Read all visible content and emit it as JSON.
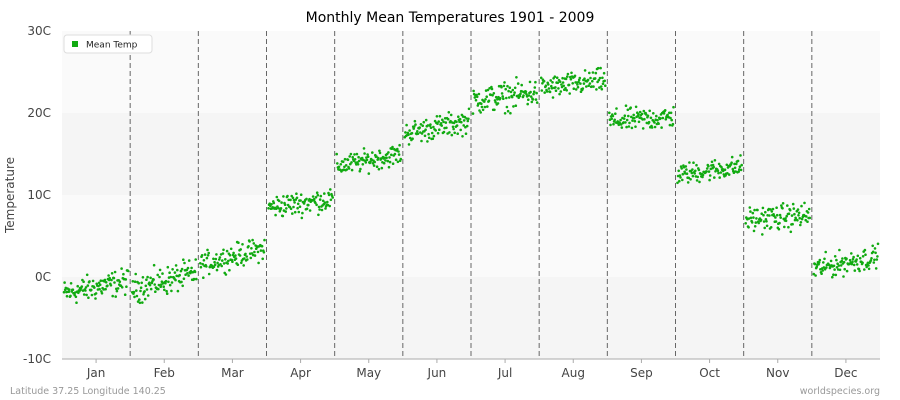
{
  "chart_data": {
    "type": "scatter",
    "title": "Monthly Mean Temperatures 1901 - 2009",
    "ylabel": "Temperature",
    "xlabel": "",
    "ylim": [
      -10,
      30
    ],
    "yticks": [
      {
        "value": 30,
        "label": "30C"
      },
      {
        "value": 20,
        "label": "20C"
      },
      {
        "value": 10,
        "label": "10C"
      },
      {
        "value": 0,
        "label": "0C"
      },
      {
        "value": -10,
        "label": "-10C"
      }
    ],
    "categories": [
      "Jan",
      "Feb",
      "Mar",
      "Apr",
      "May",
      "Jun",
      "Jul",
      "Aug",
      "Sep",
      "Oct",
      "Nov",
      "Dec"
    ],
    "years": [
      1901,
      2009
    ],
    "series": [
      {
        "name": "Mean Temp",
        "color": "#11aa11",
        "monthly_range": [
          {
            "month": "Jan",
            "min": -3.5,
            "max": 2.0,
            "typical_start": -2.0,
            "typical_end": -0.5
          },
          {
            "month": "Feb",
            "min": -3.5,
            "max": 2.5,
            "typical_start": -1.5,
            "typical_end": 0.5
          },
          {
            "month": "Mar",
            "min": -0.5,
            "max": 4.5,
            "typical_start": 1.5,
            "typical_end": 3.5
          },
          {
            "month": "Apr",
            "min": 6.0,
            "max": 11.0,
            "typical_start": 8.5,
            "typical_end": 9.5
          },
          {
            "month": "May",
            "min": 12.0,
            "max": 16.5,
            "typical_start": 13.5,
            "typical_end": 15.0
          },
          {
            "month": "Jun",
            "min": 16.0,
            "max": 21.0,
            "typical_start": 17.5,
            "typical_end": 19.0
          },
          {
            "month": "Jul",
            "min": 19.0,
            "max": 25.0,
            "typical_start": 21.5,
            "typical_end": 22.5
          },
          {
            "month": "Aug",
            "min": 21.0,
            "max": 26.0,
            "typical_start": 23.0,
            "typical_end": 24.0
          },
          {
            "month": "Sep",
            "min": 17.0,
            "max": 22.0,
            "typical_start": 19.0,
            "typical_end": 19.5
          },
          {
            "month": "Oct",
            "min": 11.0,
            "max": 15.5,
            "typical_start": 12.5,
            "typical_end": 13.5
          },
          {
            "month": "Nov",
            "min": 4.5,
            "max": 10.0,
            "typical_start": 7.0,
            "typical_end": 7.5
          },
          {
            "month": "Dec",
            "min": -0.5,
            "max": 4.5,
            "typical_start": 1.0,
            "typical_end": 2.5
          }
        ]
      }
    ],
    "legend": {
      "position": "top-left",
      "entries": [
        "Mean Temp"
      ]
    },
    "grid": {
      "horizontal_bands": true,
      "vertical_month_dividers": "dashed"
    }
  },
  "footer": {
    "left": "Latitude 37.25 Longitude 140.25",
    "right": "worldspecies.org"
  },
  "colors": {
    "band_light": "#f5f5f5",
    "band_white": "#fafafa",
    "divider": "#666666",
    "axis": "#aaaaaa"
  }
}
